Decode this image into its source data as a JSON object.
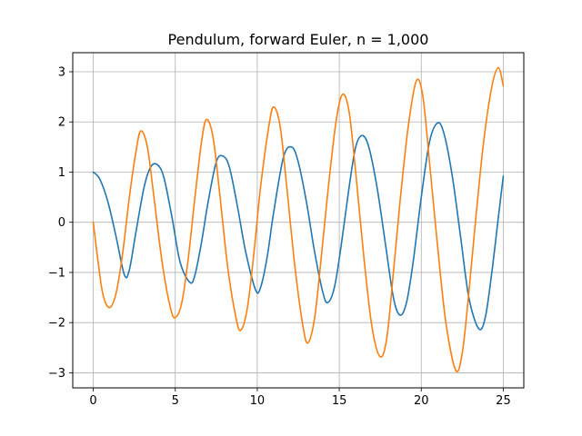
{
  "chart_data": {
    "type": "line",
    "title": "Pendulum, forward Euler, n = 1,000",
    "xlabel": "",
    "ylabel": "",
    "xlim": [
      -1.25,
      26.25
    ],
    "ylim": [
      -3.3,
      3.38
    ],
    "xticks": [
      0,
      5,
      10,
      15,
      20,
      25
    ],
    "xtick_labels": [
      "0",
      "5",
      "10",
      "15",
      "20",
      "25"
    ],
    "yticks": [
      -3,
      -2,
      -1,
      0,
      1,
      2,
      3
    ],
    "ytick_labels": [
      "−3",
      "−2",
      "−1",
      "0",
      "1",
      "2",
      "3"
    ],
    "grid": true,
    "legend": "none",
    "series": [
      {
        "color": "#1f77b4",
        "points": [
          [
            0.0,
            1.0
          ],
          [
            0.4,
            0.86
          ],
          [
            0.9,
            0.4
          ],
          [
            1.4,
            -0.3
          ],
          [
            1.9,
            -1.05
          ],
          [
            2.2,
            -0.95
          ],
          [
            2.6,
            -0.2
          ],
          [
            3.1,
            0.7
          ],
          [
            3.5,
            1.1
          ],
          [
            3.9,
            1.15
          ],
          [
            4.3,
            0.9
          ],
          [
            4.8,
            0.1
          ],
          [
            5.3,
            -0.8
          ],
          [
            5.9,
            -1.2
          ],
          [
            6.2,
            -1.05
          ],
          [
            6.6,
            -0.4
          ],
          [
            7.0,
            0.4
          ],
          [
            7.5,
            1.2
          ],
          [
            7.9,
            1.32
          ],
          [
            8.3,
            1.1
          ],
          [
            8.8,
            0.3
          ],
          [
            9.3,
            -0.6
          ],
          [
            9.9,
            -1.35
          ],
          [
            10.2,
            -1.3
          ],
          [
            10.6,
            -0.7
          ],
          [
            11.0,
            0.2
          ],
          [
            11.6,
            1.3
          ],
          [
            12.1,
            1.5
          ],
          [
            12.5,
            1.2
          ],
          [
            13.0,
            0.4
          ],
          [
            13.5,
            -0.6
          ],
          [
            14.0,
            -1.4
          ],
          [
            14.3,
            -1.6
          ],
          [
            14.7,
            -1.3
          ],
          [
            15.1,
            -0.5
          ],
          [
            15.6,
            0.7
          ],
          [
            16.0,
            1.5
          ],
          [
            16.4,
            1.73
          ],
          [
            16.8,
            1.5
          ],
          [
            17.3,
            0.7
          ],
          [
            17.8,
            -0.4
          ],
          [
            18.3,
            -1.5
          ],
          [
            18.7,
            -1.85
          ],
          [
            19.1,
            -1.6
          ],
          [
            19.5,
            -0.8
          ],
          [
            20.0,
            0.5
          ],
          [
            20.5,
            1.6
          ],
          [
            21.0,
            1.98
          ],
          [
            21.4,
            1.75
          ],
          [
            21.9,
            0.9
          ],
          [
            22.4,
            -0.3
          ],
          [
            22.9,
            -1.5
          ],
          [
            23.5,
            -2.12
          ],
          [
            23.9,
            -1.9
          ],
          [
            24.3,
            -1.0
          ],
          [
            24.7,
            0.1
          ],
          [
            25.0,
            0.92
          ]
        ]
      },
      {
        "color": "#ff7f0e",
        "points": [
          [
            0.0,
            0.0
          ],
          [
            0.3,
            -0.8
          ],
          [
            0.6,
            -1.45
          ],
          [
            1.0,
            -1.7
          ],
          [
            1.4,
            -1.4
          ],
          [
            1.8,
            -0.6
          ],
          [
            2.2,
            0.5
          ],
          [
            2.6,
            1.4
          ],
          [
            2.9,
            1.82
          ],
          [
            3.3,
            1.5
          ],
          [
            3.7,
            0.5
          ],
          [
            4.2,
            -0.8
          ],
          [
            4.7,
            -1.7
          ],
          [
            5.0,
            -1.9
          ],
          [
            5.4,
            -1.6
          ],
          [
            5.8,
            -0.7
          ],
          [
            6.2,
            0.5
          ],
          [
            6.6,
            1.6
          ],
          [
            6.9,
            2.05
          ],
          [
            7.3,
            1.7
          ],
          [
            7.7,
            0.6
          ],
          [
            8.2,
            -0.9
          ],
          [
            8.7,
            -1.9
          ],
          [
            9.0,
            -2.15
          ],
          [
            9.4,
            -1.7
          ],
          [
            9.8,
            -0.6
          ],
          [
            10.2,
            0.7
          ],
          [
            10.7,
            1.9
          ],
          [
            11.0,
            2.3
          ],
          [
            11.4,
            1.9
          ],
          [
            11.8,
            0.7
          ],
          [
            12.3,
            -0.9
          ],
          [
            12.8,
            -2.1
          ],
          [
            13.1,
            -2.4
          ],
          [
            13.5,
            -1.9
          ],
          [
            13.9,
            -0.7
          ],
          [
            14.3,
            0.6
          ],
          [
            14.8,
            2.0
          ],
          [
            15.2,
            2.55
          ],
          [
            15.6,
            2.2
          ],
          [
            16.0,
            1.0
          ],
          [
            16.5,
            -0.7
          ],
          [
            17.0,
            -2.1
          ],
          [
            17.5,
            -2.68
          ],
          [
            17.9,
            -2.3
          ],
          [
            18.3,
            -1.0
          ],
          [
            18.7,
            0.4
          ],
          [
            19.2,
            1.9
          ],
          [
            19.7,
            2.82
          ],
          [
            20.1,
            2.5
          ],
          [
            20.5,
            1.2
          ],
          [
            21.0,
            -0.5
          ],
          [
            21.5,
            -2.0
          ],
          [
            22.1,
            -2.95
          ],
          [
            22.5,
            -2.6
          ],
          [
            22.9,
            -1.4
          ],
          [
            23.3,
            0.0
          ],
          [
            23.8,
            1.6
          ],
          [
            24.3,
            2.7
          ],
          [
            24.7,
            3.08
          ],
          [
            25.0,
            2.72
          ]
        ]
      }
    ]
  }
}
